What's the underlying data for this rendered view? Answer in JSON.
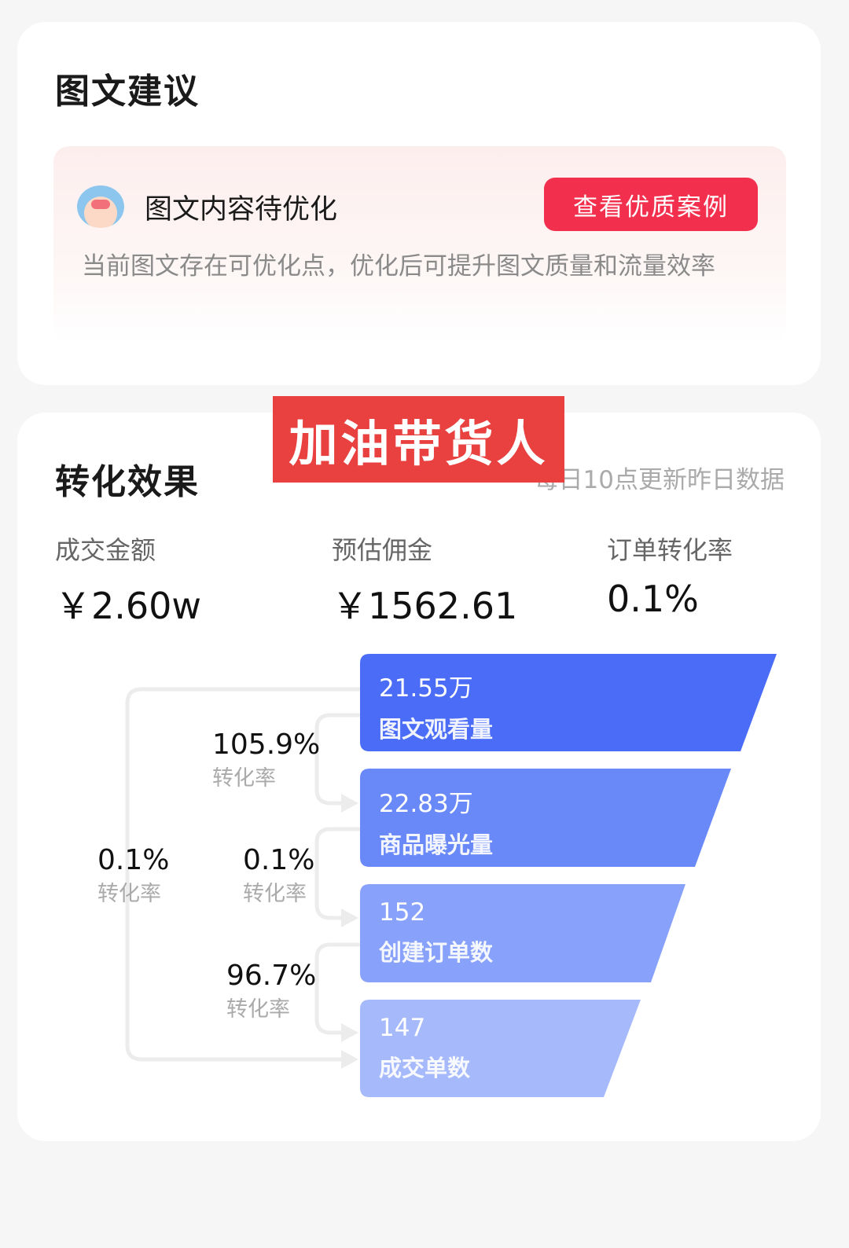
{
  "suggestion_card": {
    "title": "图文建议",
    "tip": {
      "icon": "crying-face-icon",
      "title": "图文内容待优化",
      "button_label": "查看优质案例",
      "description": "当前图文存在可优化点，优化后可提升图文质量和流量效率"
    }
  },
  "watermark": "加油带货人",
  "conversion_card": {
    "title": "转化效果",
    "subtitle": "每日10点更新昨日数据",
    "metrics": [
      {
        "label": "成交金额",
        "value": "￥2.60w"
      },
      {
        "label": "预估佣金",
        "value": "￥1562.61"
      },
      {
        "label": "订单转化率",
        "value": "0.1%"
      }
    ],
    "funnel": [
      {
        "value": "21.55万",
        "label": "图文观看量",
        "color": "#4a6cf7"
      },
      {
        "value": "22.83万",
        "label": "商品曝光量",
        "color": "#6a89f8"
      },
      {
        "value": "152",
        "label": "创建订单数",
        "color": "#88a1fa"
      },
      {
        "value": "147",
        "label": "成交单数",
        "color": "#a5b9fb"
      }
    ],
    "rates": [
      {
        "value": "105.9%",
        "label": "转化率"
      },
      {
        "value": "0.1%",
        "label": "转化率"
      },
      {
        "value": "96.7%",
        "label": "转化率"
      },
      {
        "value": "0.1%",
        "label": "转化率"
      }
    ]
  }
}
